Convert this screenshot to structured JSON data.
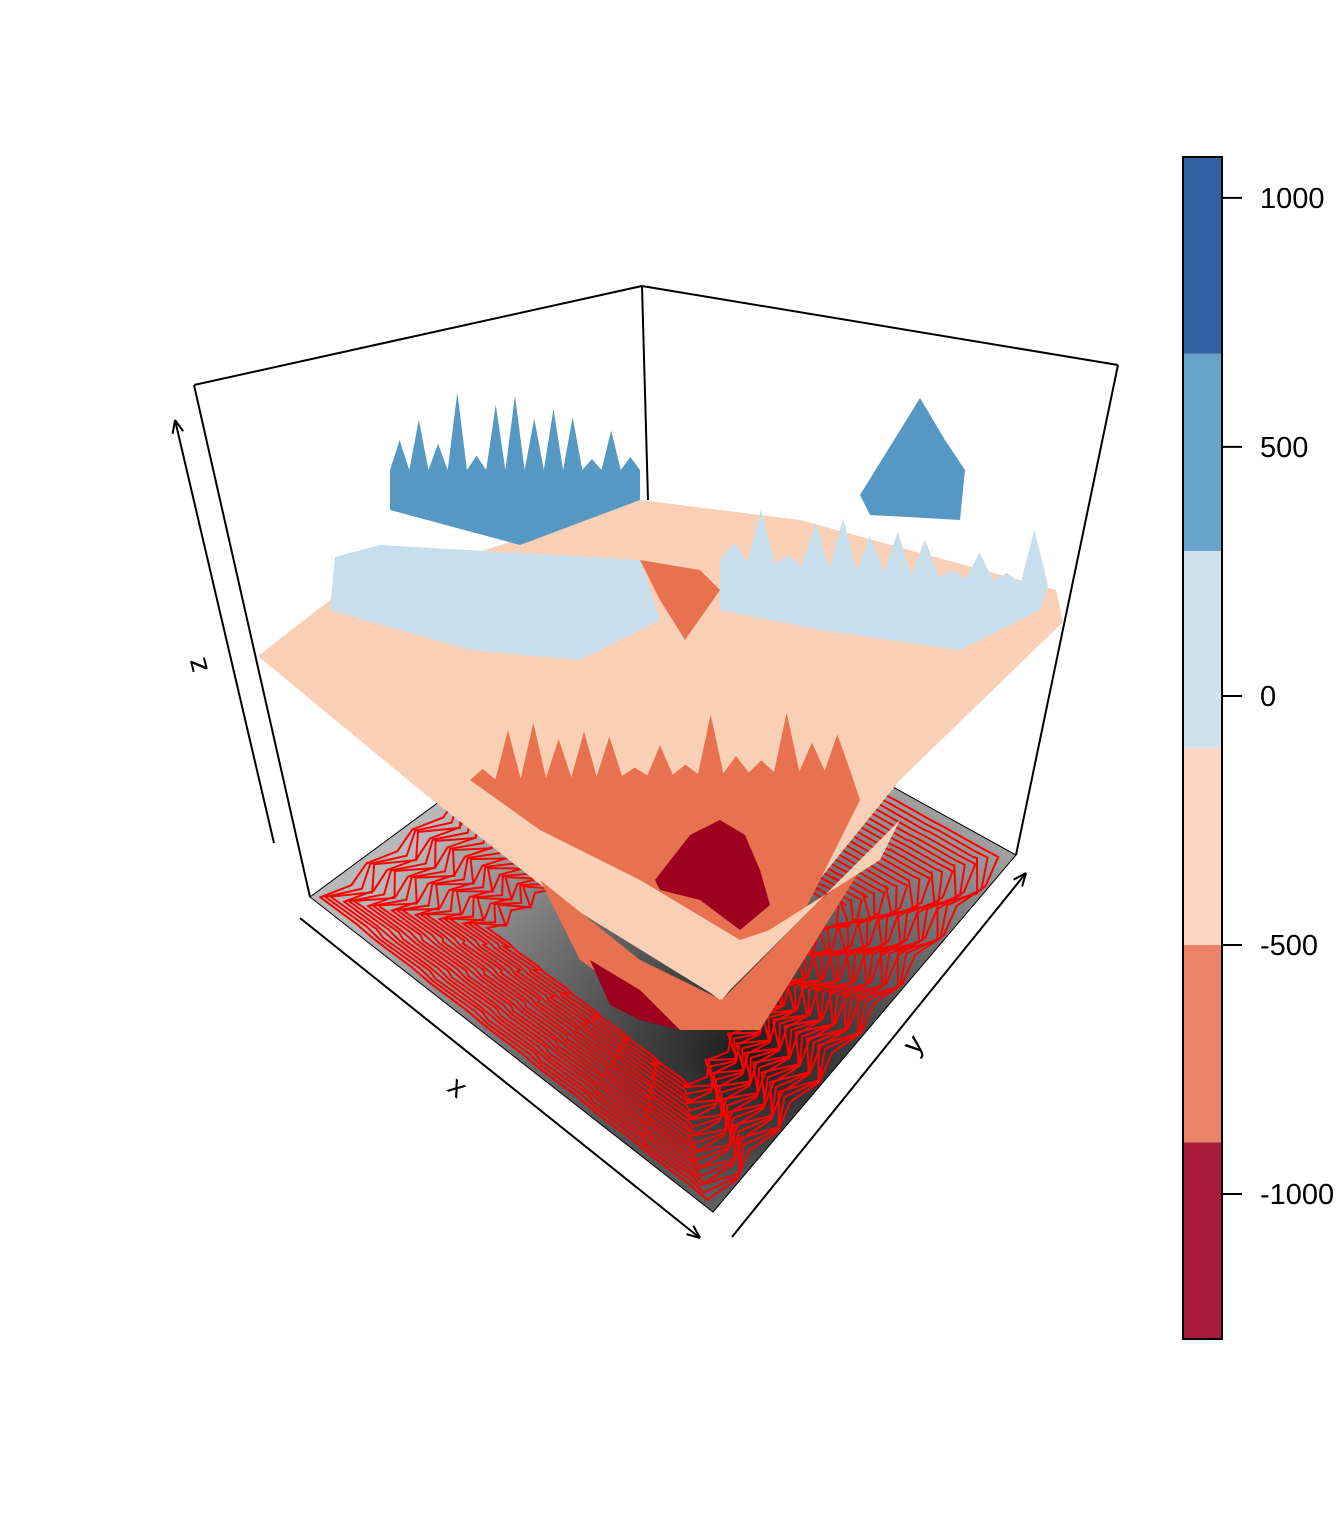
{
  "chart_data": {
    "type": "surface",
    "title": "",
    "xlabel": "x",
    "ylabel": "y",
    "zlabel": "z",
    "zlim": [
      -1291,
      1082
    ],
    "colorbar": {
      "ticks": [
        1000,
        500,
        0,
        -500,
        -1000
      ],
      "tick_labels": [
        "1000",
        "500",
        "0",
        "-500",
        "-1000"
      ],
      "breaks": [
        -1291,
        -896,
        -500,
        -104,
        291,
        687,
        1082
      ],
      "colors": [
        "#A8193A",
        "#EB8466",
        "#FAD6C3",
        "#CDE1EF",
        "#67A3CB",
        "#3060A2"
      ]
    },
    "base_image": {
      "palette": "grey",
      "contour_color": "#FF0000"
    },
    "box": true,
    "grid": false
  }
}
